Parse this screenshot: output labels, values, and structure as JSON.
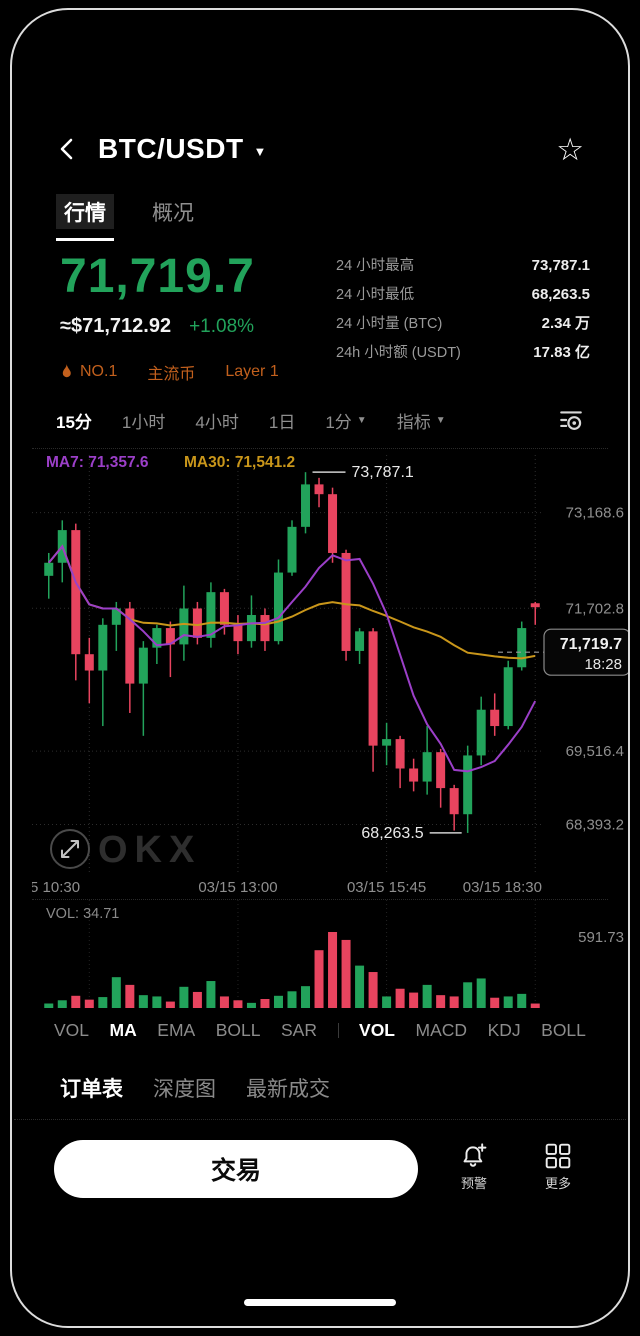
{
  "header": {
    "title": "BTC/USDT"
  },
  "tabs": {
    "items": [
      {
        "label": "行情",
        "name": "quotes",
        "active": true
      },
      {
        "label": "概况",
        "name": "overview",
        "active": false
      }
    ]
  },
  "ticker": {
    "last_price": "71,719.7",
    "fiat_value": "≈$71,712.92",
    "change_pct": "+1.08%",
    "badges": [
      {
        "label": "NO.1",
        "name": "rank-badge",
        "icon": "flame"
      },
      {
        "label": "主流币",
        "name": "mainstream-badge"
      },
      {
        "label": "Layer 1",
        "name": "layer1-badge"
      }
    ],
    "stats": [
      {
        "label": "24 小时最高",
        "value": "73,787.1"
      },
      {
        "label": "24 小时最低",
        "value": "68,263.5"
      },
      {
        "label": "24 小时量 (BTC)",
        "value": "2.34 万"
      },
      {
        "label": "24h 小时额 (USDT)",
        "value": "17.83 亿"
      }
    ]
  },
  "timeframes": {
    "items": [
      {
        "label": "15分",
        "name": "15m",
        "active": true
      },
      {
        "label": "1小时",
        "name": "1h"
      },
      {
        "label": "4小时",
        "name": "4h"
      },
      {
        "label": "1日",
        "name": "1d"
      },
      {
        "label": "1分",
        "name": "1m-dropdown",
        "caret": true
      },
      {
        "label": "指标",
        "name": "indicators-dropdown",
        "caret": true
      }
    ]
  },
  "chart_data": {
    "type": "candlestick",
    "title": "BTC/USDT 15分 K线图",
    "legend": {
      "ma7": "MA7: 71,357.6",
      "ma30": "MA30: 71,541.2"
    },
    "y_axis_labels": [
      {
        "value": 73168.6,
        "label": "73,168.6"
      },
      {
        "value": 71702.8,
        "label": "71,702.8"
      },
      {
        "value": 69516.4,
        "label": "69,516.4"
      },
      {
        "value": 68393.2,
        "label": "68,393.2"
      }
    ],
    "x_labels": [
      {
        "label": "5 10:30",
        "candle": 3,
        "align": "start"
      },
      {
        "label": "03/15 13:00",
        "candle": 14,
        "align": "middle"
      },
      {
        "label": "03/15 15:45",
        "candle": 25,
        "align": "middle"
      },
      {
        "label": "03/15 18:30",
        "candle": 36,
        "align": "end"
      }
    ],
    "price_range": [
      67650,
      74050
    ],
    "high_annotation": {
      "label": "73,787.1",
      "candle": 19
    },
    "low_annotation": {
      "label": "68,263.5",
      "candle": 31
    },
    "current_price": {
      "label": "71,719.7",
      "time": "18:28",
      "value": 71719.7
    },
    "watermark": "OKX",
    "candles": [
      [
        72200,
        72550,
        71850,
        72400,
        35
      ],
      [
        72400,
        73050,
        72100,
        72900,
        60
      ],
      [
        72900,
        73000,
        70600,
        71000,
        95
      ],
      [
        71000,
        71250,
        70250,
        70750,
        65
      ],
      [
        70750,
        71550,
        69900,
        71450,
        85
      ],
      [
        71450,
        71800,
        71050,
        71700,
        240
      ],
      [
        71700,
        71800,
        70100,
        70550,
        180
      ],
      [
        70550,
        71200,
        69750,
        71100,
        100
      ],
      [
        71100,
        71450,
        70850,
        71400,
        90
      ],
      [
        71400,
        71500,
        70650,
        71150,
        50
      ],
      [
        71150,
        72050,
        70900,
        71700,
        165
      ],
      [
        71700,
        71800,
        71150,
        71250,
        125
      ],
      [
        71250,
        72100,
        71100,
        71950,
        210
      ],
      [
        71950,
        72000,
        71300,
        71450,
        90
      ],
      [
        71450,
        71600,
        71000,
        71200,
        60
      ],
      [
        71200,
        71900,
        71100,
        71600,
        40
      ],
      [
        71600,
        71700,
        71050,
        71200,
        70
      ],
      [
        71200,
        72450,
        71150,
        72250,
        95
      ],
      [
        72250,
        73050,
        72200,
        72950,
        130
      ],
      [
        72950,
        73787.1,
        72850,
        73600,
        170
      ],
      [
        73600,
        73700,
        73250,
        73450,
        450
      ],
      [
        73450,
        73550,
        72400,
        72550,
        591.73
      ],
      [
        72550,
        72600,
        70900,
        71050,
        530
      ],
      [
        71050,
        71400,
        70850,
        71350,
        330
      ],
      [
        71350,
        71400,
        69200,
        69600,
        280
      ],
      [
        69600,
        69950,
        69300,
        69700,
        90
      ],
      [
        69700,
        69750,
        68950,
        69250,
        150
      ],
      [
        69250,
        69400,
        68900,
        69050,
        120
      ],
      [
        69050,
        69900,
        68850,
        69500,
        180
      ],
      [
        69500,
        69550,
        68650,
        68950,
        100
      ],
      [
        68950,
        69000,
        68300,
        68550,
        90
      ],
      [
        68550,
        69600,
        68263.5,
        69450,
        200
      ],
      [
        69450,
        70350,
        69300,
        70150,
        230
      ],
      [
        70150,
        70400,
        69750,
        69900,
        80
      ],
      [
        69900,
        70900,
        69850,
        70800,
        90
      ],
      [
        70800,
        71500,
        70750,
        71400,
        110
      ],
      [
        71780,
        71800,
        71450,
        71719.7,
        34.71
      ]
    ],
    "volume": {
      "label": "VOL: 34.71",
      "scale_max_label": "591.73",
      "max": 591.73
    }
  },
  "indicator_tabs": {
    "items": [
      {
        "label": "VOL",
        "name": "vol-1"
      },
      {
        "label": "MA",
        "name": "ma",
        "active": true
      },
      {
        "label": "EMA",
        "name": "ema"
      },
      {
        "label": "BOLL",
        "name": "boll-1"
      },
      {
        "label": "SAR",
        "name": "sar"
      },
      {
        "label": "VOL",
        "name": "vol-2",
        "active": true,
        "divider_before": true
      },
      {
        "label": "MACD",
        "name": "macd"
      },
      {
        "label": "KDJ",
        "name": "kdj"
      },
      {
        "label": "BOLL",
        "name": "boll-2"
      }
    ]
  },
  "market_tabs": {
    "items": [
      {
        "label": "订单表",
        "name": "order-book",
        "active": true
      },
      {
        "label": "深度图",
        "name": "depth-chart"
      },
      {
        "label": "最新成交",
        "name": "latest-trades"
      }
    ]
  },
  "bottom_bar": {
    "trade_label": "交易",
    "alert_label": "预警",
    "more_label": "更多"
  },
  "colors": {
    "up": "#22a35b",
    "down": "#e8445f",
    "ma7": "#9b3fc8",
    "ma30": "#c9961a",
    "accent_orange": "#c2601d",
    "axis_text": "#8f8f8f"
  }
}
